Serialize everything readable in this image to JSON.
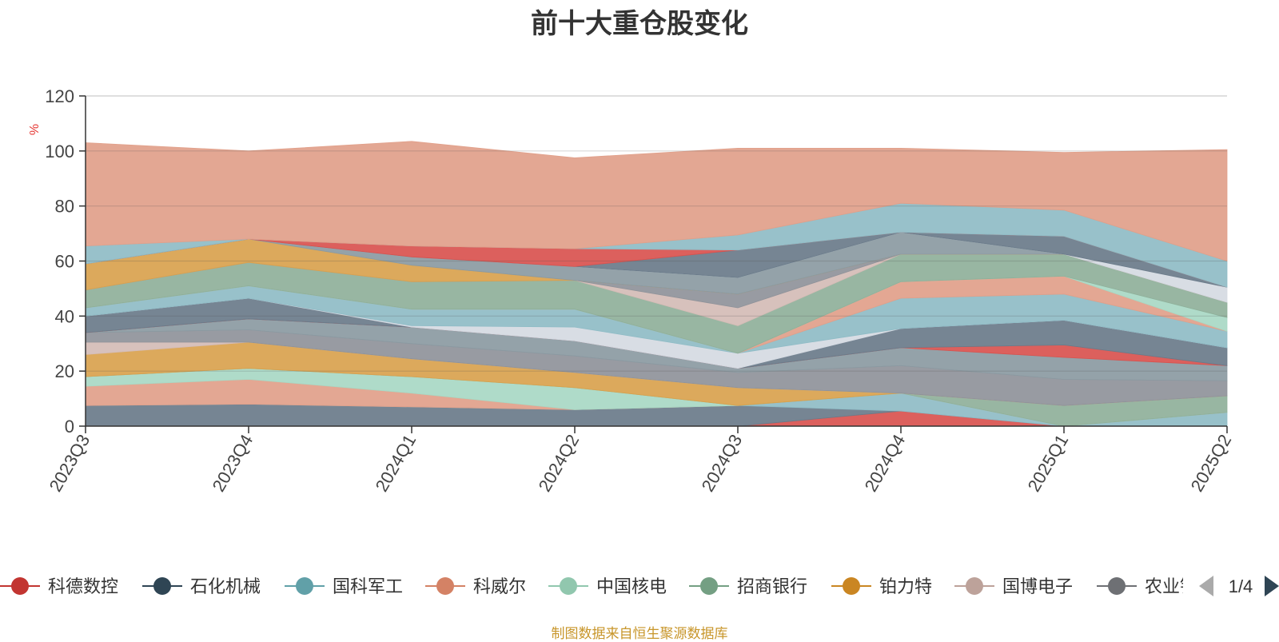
{
  "source_note": "制图数据来自恒生聚源数据库",
  "legend_page": "1/4",
  "legend_visible": [
    "科德数控",
    "石化机械",
    "国科军工",
    "科威尔",
    "中国核电",
    "招商银行",
    "铂力特",
    "国博电子",
    "农业银行"
  ],
  "chart_data": {
    "type": "area",
    "stacked": true,
    "title": "前十大重仓股变化",
    "xlabel": "",
    "ylabel": "%",
    "ylim": [
      0,
      120
    ],
    "yticks": [
      0,
      20,
      40,
      60,
      80,
      100,
      120
    ],
    "grid": true,
    "legend_position": "bottom",
    "categories": [
      "2023Q3",
      "2023Q4",
      "2024Q1",
      "2024Q2",
      "2024Q3",
      "2024Q4",
      "2025Q1",
      "2025Q2"
    ],
    "series": [
      {
        "color": "#d9534f",
        "values": [
          0,
          0,
          0,
          0,
          0,
          5.5,
          0,
          0
        ]
      },
      {
        "color": "#6a7b8a",
        "values": [
          7.5,
          8,
          7,
          6,
          7.5,
          0,
          0,
          0
        ]
      },
      {
        "color": "#8fbcc6",
        "values": [
          0,
          0,
          0,
          0,
          0,
          6.5,
          0,
          5
        ]
      },
      {
        "color": "#e1a08a",
        "values": [
          7,
          9,
          5,
          0,
          0,
          0,
          0,
          0
        ]
      },
      {
        "color": "#a8d8c4",
        "values": [
          3.5,
          4,
          6,
          8,
          0,
          0,
          0,
          0
        ]
      },
      {
        "color": "#8fb09a",
        "values": [
          0,
          0,
          0,
          0,
          0,
          0,
          7.5,
          6
        ]
      },
      {
        "color": "#d9a24e",
        "values": [
          8,
          9.5,
          6.5,
          5.5,
          6.5,
          0,
          0,
          0
        ]
      },
      {
        "color": "#d4bcb6",
        "values": [
          4.5,
          0,
          0,
          0,
          0,
          0,
          0,
          0
        ]
      },
      {
        "color": "#8f939a",
        "values": [
          3.5,
          4.5,
          5.5,
          6,
          5.5,
          10,
          9.5,
          5.5
        ]
      },
      {
        "color": "#8b9aa2",
        "values": [
          0,
          4,
          6,
          5.5,
          1.5,
          6.5,
          8,
          5.5
        ]
      },
      {
        "color": "#d9534f",
        "values": [
          0,
          0,
          0,
          0,
          0,
          0,
          4.5,
          0
        ]
      },
      {
        "color": "#6a7b8a",
        "values": [
          6,
          7.5,
          0,
          0,
          0,
          7,
          9,
          6.5
        ]
      },
      {
        "color": "#d5dae2",
        "values": [
          0,
          0,
          0.5,
          5,
          5.5,
          0,
          0,
          0
        ]
      },
      {
        "color": "#8fbcc6",
        "values": [
          3,
          4.5,
          6,
          6.5,
          0,
          11,
          9.5,
          6
        ]
      },
      {
        "color": "#e1a08a",
        "values": [
          0,
          0,
          0,
          0,
          0,
          6,
          6.5,
          0
        ]
      },
      {
        "color": "#a8d8c4",
        "values": [
          0,
          0,
          0,
          0,
          0,
          0,
          0,
          5
        ]
      },
      {
        "color": "#8fb09a",
        "values": [
          6.5,
          8.5,
          10,
          10.5,
          10,
          10,
          8,
          5.5
        ]
      },
      {
        "color": "#d4bcb6",
        "values": [
          0,
          0,
          0,
          0,
          6.5,
          0,
          0,
          0
        ]
      },
      {
        "color": "#8f939a",
        "values": [
          0,
          0,
          0,
          0,
          5,
          0,
          0,
          0
        ]
      },
      {
        "color": "#d9a24e",
        "values": [
          9.5,
          8.5,
          6,
          0,
          0,
          0,
          0,
          0
        ]
      },
      {
        "color": "#8b9aa2",
        "values": [
          0,
          0,
          3,
          5,
          6,
          8,
          0,
          0
        ]
      },
      {
        "color": "#d5dae2",
        "values": [
          0,
          0,
          0,
          0,
          0,
          0,
          0,
          5.5
        ]
      },
      {
        "color": "#6a7b8a",
        "values": [
          0,
          0,
          0,
          0,
          10,
          0,
          6.5,
          0
        ]
      },
      {
        "color": "#d9534f",
        "values": [
          0,
          0,
          4,
          6.5,
          0,
          0,
          0,
          0
        ]
      },
      {
        "color": "#8fbcc6",
        "values": [
          6.5,
          0,
          0,
          0,
          5.5,
          10.5,
          9.5,
          9.5
        ]
      },
      {
        "color": "#e1a08a",
        "values": [
          37.5,
          32,
          38,
          33,
          31.5,
          20,
          21,
          40.5
        ]
      }
    ]
  }
}
